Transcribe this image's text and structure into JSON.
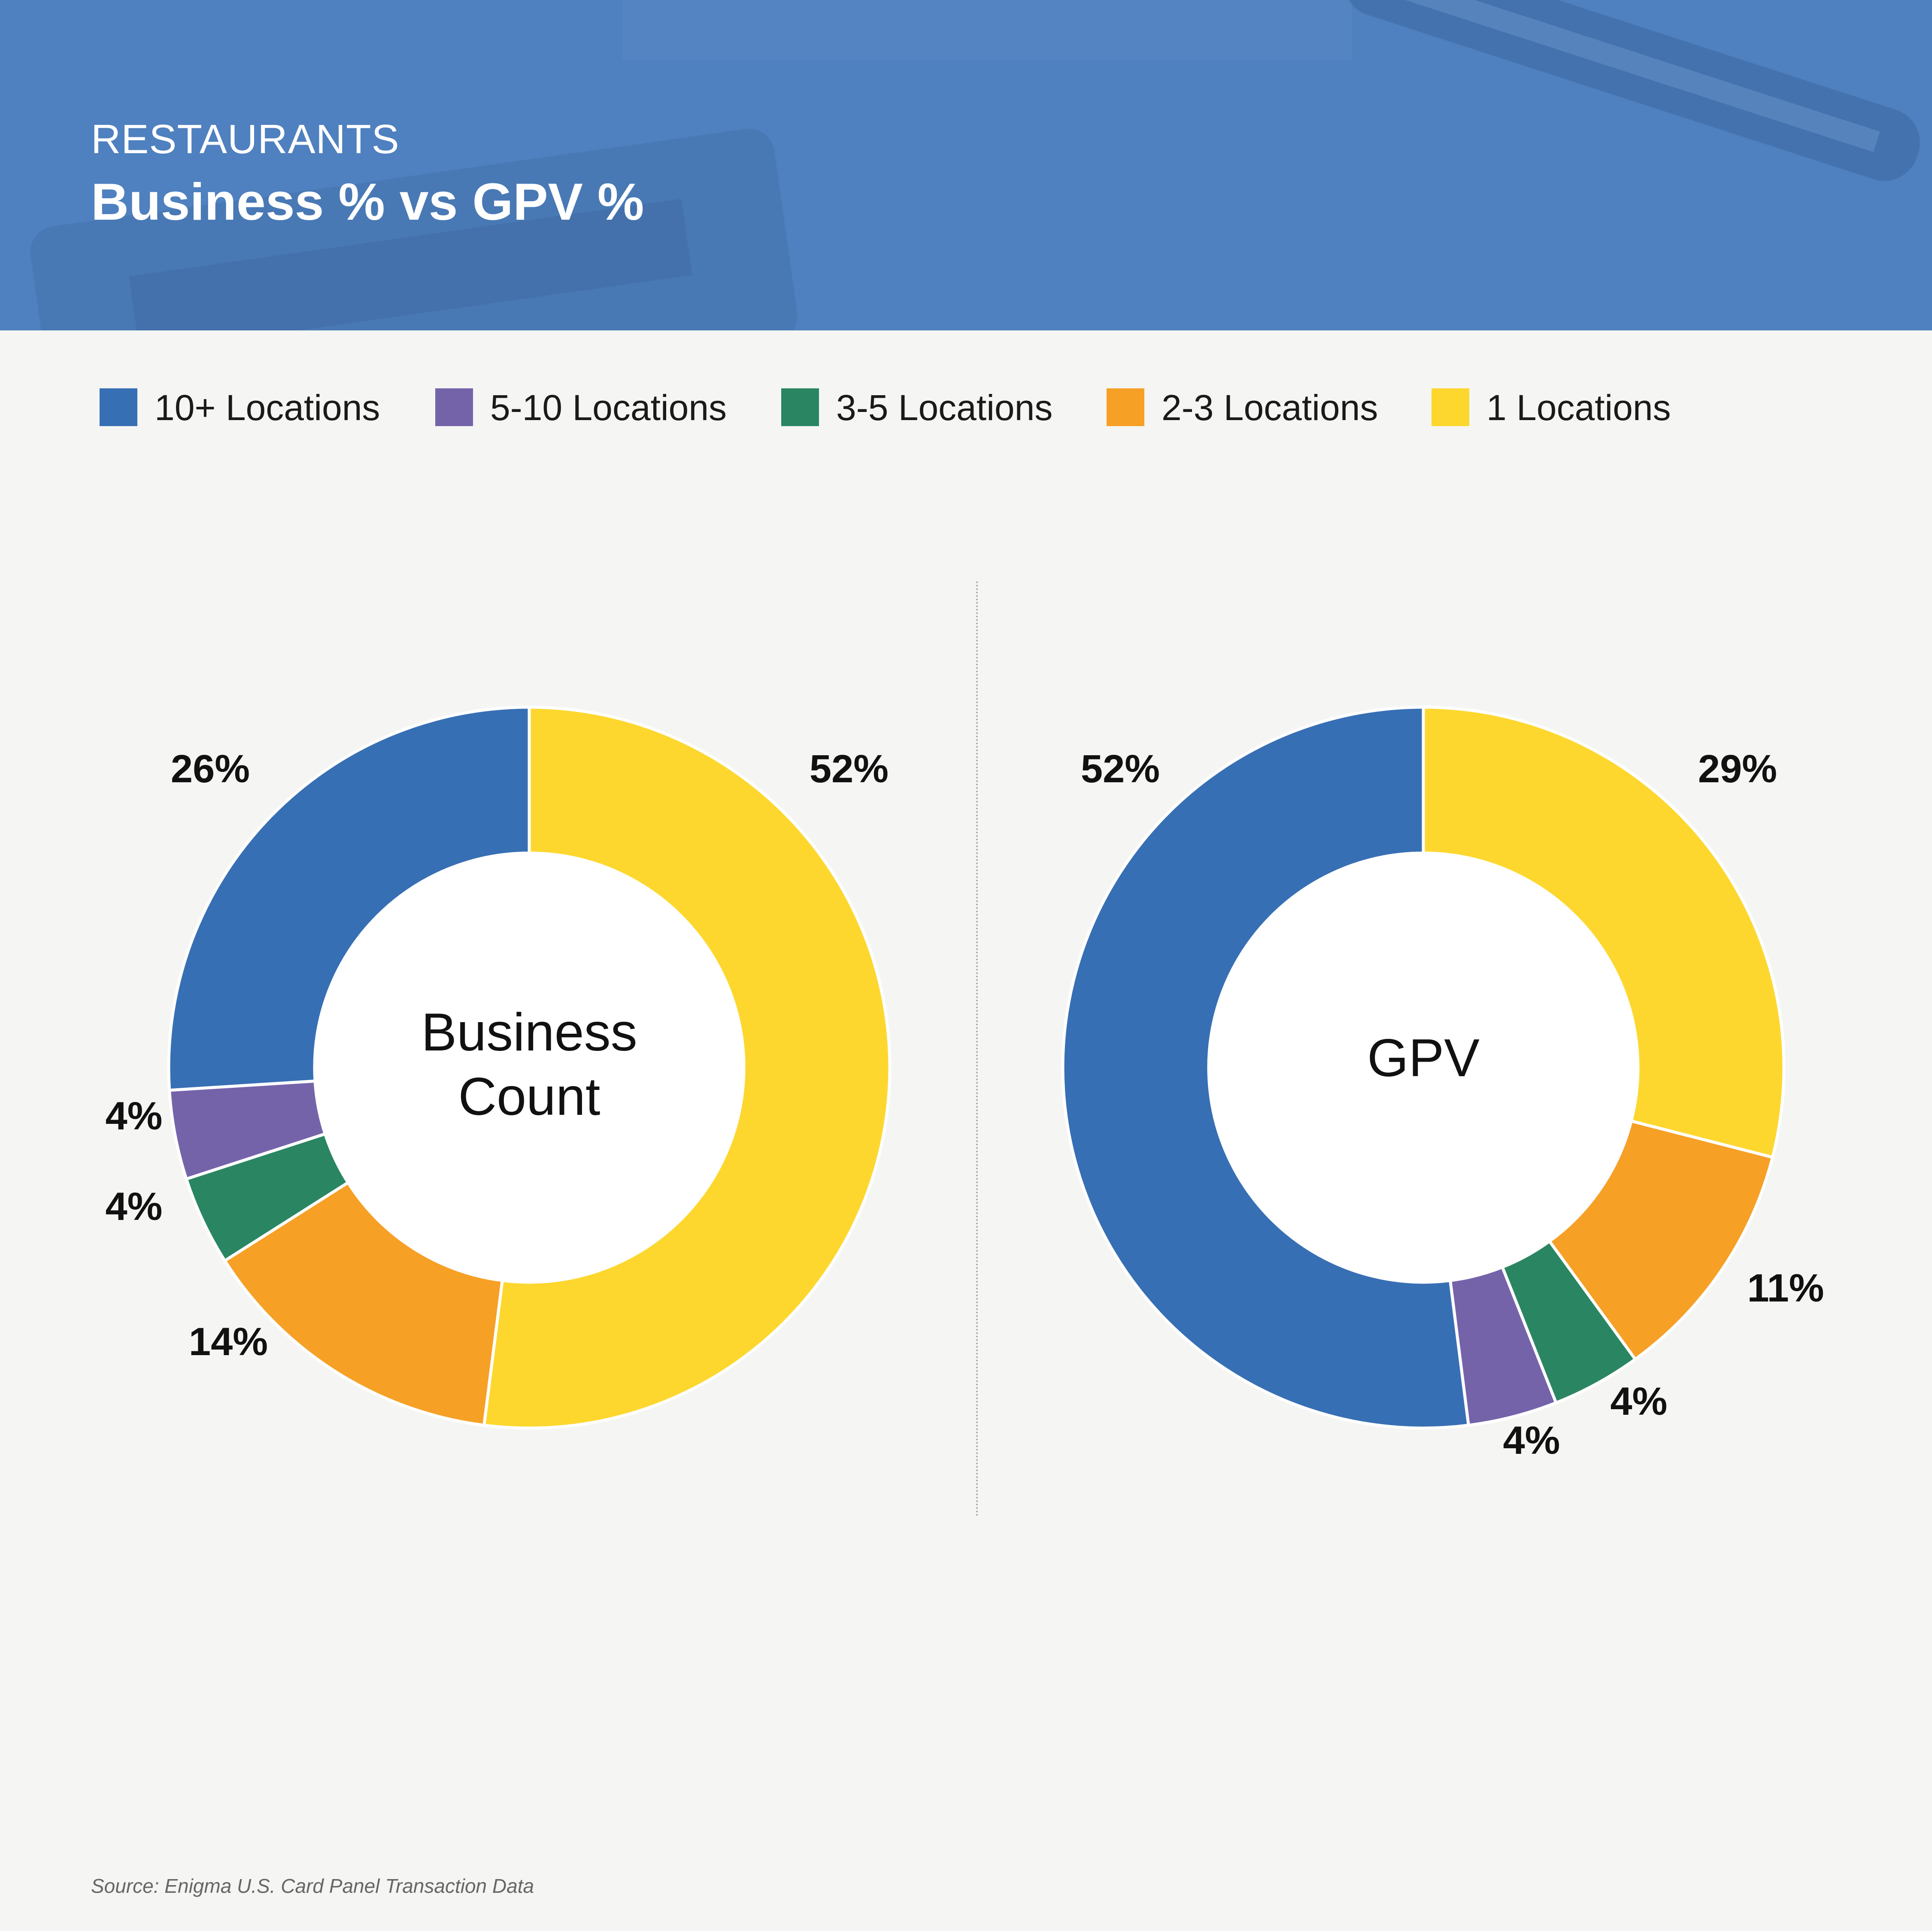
{
  "header": {
    "kicker": "RESTAURANTS",
    "title": "Business % vs GPV %",
    "background_color": "#4f80bf"
  },
  "legend": [
    {
      "label": "10+ Locations",
      "color": "#376fb4"
    },
    {
      "label": "5-10 Locations",
      "color": "#7563aa"
    },
    {
      "label": "3-5 Locations",
      "color": "#2a8662"
    },
    {
      "label": "2-3 Locations",
      "color": "#f6a026"
    },
    {
      "label": "1 Locations",
      "color": "#fdd72e"
    }
  ],
  "chart_data": [
    {
      "type": "pie",
      "donut": true,
      "center_label": [
        "Business",
        "Count"
      ],
      "categories": [
        "10+ Locations",
        "5-10 Locations",
        "3-5 Locations",
        "2-3 Locations",
        "1 Locations"
      ],
      "values": [
        26,
        4,
        4,
        14,
        52
      ],
      "labels": [
        "26%",
        "4%",
        "4%",
        "14%",
        "52%"
      ]
    },
    {
      "type": "pie",
      "donut": true,
      "center_label": [
        "GPV"
      ],
      "categories": [
        "10+ Locations",
        "5-10 Locations",
        "3-5 Locations",
        "2-3 Locations",
        "1 Locations"
      ],
      "values": [
        52,
        4,
        4,
        11,
        29
      ],
      "labels": [
        "52%",
        "4%",
        "4%",
        "11%",
        "29%"
      ]
    }
  ],
  "source": "Source: Enigma U.S. Card Panel Transaction Data"
}
